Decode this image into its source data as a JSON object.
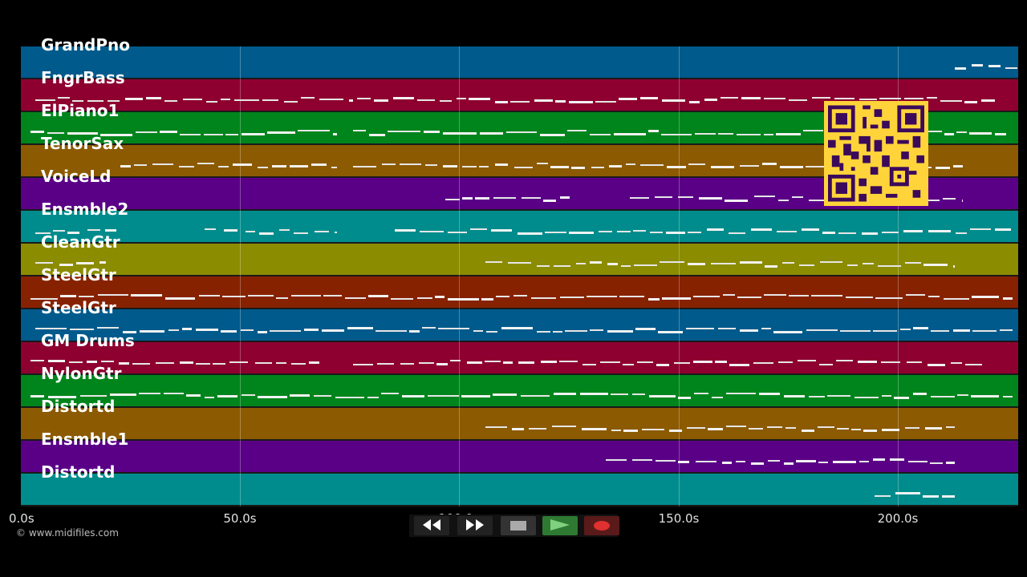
{
  "tracks": [
    {
      "name": "GrandPno",
      "color": "#005a8c"
    },
    {
      "name": "FngrBass",
      "color": "#8e0030"
    },
    {
      "name": "ElPiano1",
      "color": "#00851c"
    },
    {
      "name": "TenorSax",
      "color": "#8c5a00"
    },
    {
      "name": "VoiceLd",
      "color": "#5a0087"
    },
    {
      "name": "Ensmble2",
      "color": "#008c8c"
    },
    {
      "name": "CleanGtr",
      "color": "#8c8c00"
    },
    {
      "name": "SteelGtr",
      "color": "#872200"
    },
    {
      "name": "SteelGtr",
      "color": "#005a8c"
    },
    {
      "name": "GM Drums",
      "color": "#8e0030"
    },
    {
      "name": "NylonGtr",
      "color": "#00851c"
    },
    {
      "name": "Distortd",
      "color": "#8c5a00"
    },
    {
      "name": "Ensmble1",
      "color": "#5a0087"
    },
    {
      "name": "Distortd",
      "color": "#008c8c"
    }
  ],
  "timeline": {
    "ticks": [
      "0.0s",
      "50.0s",
      "100.0s",
      "150.0s",
      "200.0s"
    ],
    "tick_seconds": [
      0,
      50,
      100,
      150,
      200
    ],
    "max_seconds": 227.5
  },
  "transport": {
    "rewind_icon": "rewind-icon",
    "forward_icon": "fast-forward-icon",
    "stop_icon": "stop-icon",
    "play_icon": "play-icon",
    "record_icon": "record-icon"
  },
  "footer": {
    "copyright": "© www.midifiles.com"
  },
  "overlay": {
    "qr_icon": "qr-code-icon"
  }
}
